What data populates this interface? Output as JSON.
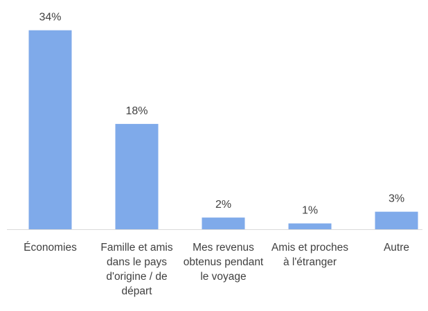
{
  "chart_data": {
    "type": "bar",
    "categories": [
      "Économies",
      "Famille et amis dans le pays d'origine / de départ",
      "Mes revenus obtenus pendant le voyage",
      "Amis et proches à l'étranger",
      "Autre"
    ],
    "values": [
      34,
      18,
      2,
      1,
      3
    ],
    "value_labels": [
      "34%",
      "18%",
      "2%",
      "1%",
      "3%"
    ],
    "color": "#7faaea"
  }
}
